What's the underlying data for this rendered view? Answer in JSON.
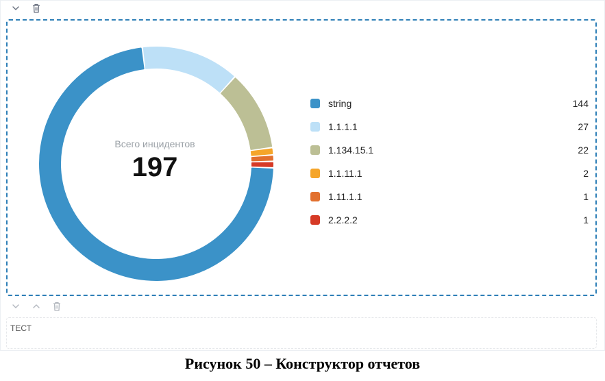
{
  "toolbar_top": {
    "icons": [
      "chevron-down-icon",
      "trash-icon"
    ]
  },
  "toolbar_bottom": {
    "icons": [
      "chevron-down-icon",
      "chevron-up-icon",
      "trash-icon"
    ]
  },
  "chart_data": {
    "type": "pie",
    "donut": true,
    "center_label": "Всего инцидентов",
    "total": "197",
    "categories": [
      "string",
      "1.1.1.1",
      "1.134.15.1",
      "1.1.11.1",
      "1.11.1.1",
      "2.2.2.2"
    ],
    "values": [
      144,
      27,
      22,
      2,
      1,
      1
    ],
    "colors": [
      "#3b92c8",
      "#bde0f7",
      "#bcbf95",
      "#f5a52a",
      "#e2702e",
      "#d63a26"
    ],
    "legend_position": "right"
  },
  "text_block": {
    "value": "ТЕСТ"
  },
  "caption": "Рисунок 50 – Конструктор отчетов"
}
